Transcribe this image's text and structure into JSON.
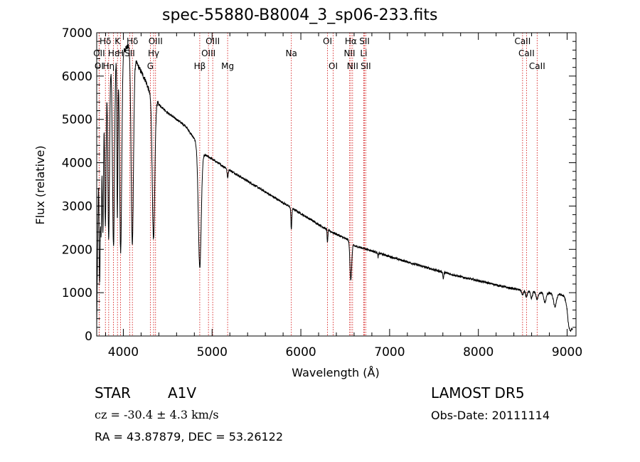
{
  "title": "spec-55880-B8004_3_sp06-233.fits",
  "info": {
    "class": "STAR",
    "subclass": "A1V",
    "survey": "LAMOST DR5",
    "cz": "cz = -30.4 ± 4.3 km/s",
    "obs_date": "Obs-Date: 20111114",
    "coords": "RA =  43.87879, DEC =  53.26122"
  },
  "colors": {
    "line": "#000000",
    "marker": "#d00000",
    "axis": "#000000"
  },
  "chart_data": {
    "type": "line",
    "xlabel": "Wavelength (Å)",
    "ylabel": "Flux (relative)",
    "xlim": [
      3700,
      9100
    ],
    "ylim": [
      0,
      7000
    ],
    "xticks": [
      4000,
      5000,
      6000,
      7000,
      8000,
      9000
    ],
    "yticks": [
      0,
      1000,
      2000,
      3000,
      4000,
      5000,
      6000,
      7000
    ],
    "continuum": [
      [
        3700,
        200
      ],
      [
        3720,
        3600
      ],
      [
        3750,
        5500
      ],
      [
        3800,
        6000
      ],
      [
        3900,
        6400
      ],
      [
        4000,
        6600
      ],
      [
        4060,
        6700
      ],
      [
        4150,
        6300
      ],
      [
        4250,
        5900
      ],
      [
        4300,
        5600
      ],
      [
        4400,
        5350
      ],
      [
        4500,
        5150
      ],
      [
        4600,
        5000
      ],
      [
        4700,
        4850
      ],
      [
        4800,
        4550
      ],
      [
        4880,
        4200
      ],
      [
        4950,
        4150
      ],
      [
        5100,
        3950
      ],
      [
        5300,
        3700
      ],
      [
        5500,
        3450
      ],
      [
        5700,
        3200
      ],
      [
        5900,
        2950
      ],
      [
        6100,
        2700
      ],
      [
        6300,
        2450
      ],
      [
        6500,
        2250
      ],
      [
        6560,
        2200
      ],
      [
        6600,
        2080
      ],
      [
        6700,
        2030
      ],
      [
        6900,
        1900
      ],
      [
        7100,
        1770
      ],
      [
        7300,
        1650
      ],
      [
        7500,
        1530
      ],
      [
        7700,
        1420
      ],
      [
        7900,
        1320
      ],
      [
        8100,
        1230
      ],
      [
        8300,
        1130
      ],
      [
        8500,
        1050
      ],
      [
        8700,
        1000
      ],
      [
        8900,
        970
      ],
      [
        9000,
        900
      ],
      [
        9040,
        300
      ],
      [
        9060,
        200
      ]
    ],
    "absorption_lines": [
      {
        "center": 3734,
        "depth": 3200,
        "width": 6
      },
      {
        "center": 3750,
        "depth": 3000,
        "width": 6
      },
      {
        "center": 3770,
        "depth": 3300,
        "width": 7
      },
      {
        "center": 3798,
        "depth": 3400,
        "width": 8
      },
      {
        "center": 3835,
        "depth": 3900,
        "width": 9
      },
      {
        "center": 3889,
        "depth": 4300,
        "width": 11
      },
      {
        "center": 3933,
        "depth": 3800,
        "width": 5
      },
      {
        "center": 3970,
        "depth": 4600,
        "width": 12
      },
      {
        "center": 4101,
        "depth": 4400,
        "width": 13
      },
      {
        "center": 4340,
        "depth": 3300,
        "width": 14
      },
      {
        "center": 4861,
        "depth": 2700,
        "width": 16
      },
      {
        "center": 5175,
        "depth": 200,
        "width": 6
      },
      {
        "center": 5893,
        "depth": 500,
        "width": 5
      },
      {
        "center": 6300,
        "depth": 300,
        "width": 4
      },
      {
        "center": 6563,
        "depth": 900,
        "width": 10
      },
      {
        "center": 6870,
        "depth": 100,
        "width": 4
      },
      {
        "center": 7605,
        "depth": 150,
        "width": 5
      },
      {
        "center": 8498,
        "depth": 100,
        "width": 9
      },
      {
        "center": 8542,
        "depth": 150,
        "width": 9
      },
      {
        "center": 8598,
        "depth": 160,
        "width": 10
      },
      {
        "center": 8662,
        "depth": 170,
        "width": 11
      },
      {
        "center": 8750,
        "depth": 220,
        "width": 13
      },
      {
        "center": 8863,
        "depth": 300,
        "width": 16
      },
      {
        "center": 9015,
        "depth": 400,
        "width": 20
      }
    ],
    "line_markers": [
      {
        "label": "Hδ",
        "wave": 3798,
        "row": 0
      },
      {
        "label": "K",
        "wave": 3934,
        "row": 0
      },
      {
        "label": "Hδ",
        "wave": 4102,
        "row": 0
      },
      {
        "label": "OIII",
        "wave": 4363,
        "row": 0
      },
      {
        "label": "OIII",
        "wave": 5007,
        "row": 0
      },
      {
        "label": "OI",
        "wave": 6300,
        "row": 0
      },
      {
        "label": "Hα",
        "wave": 6563,
        "row": 0
      },
      {
        "label": "SII",
        "wave": 6717,
        "row": 0
      },
      {
        "label": "CaII",
        "wave": 8498,
        "row": 0
      },
      {
        "label": "OII",
        "wave": 3727,
        "row": 1
      },
      {
        "label": "Hε",
        "wave": 3889,
        "row": 1
      },
      {
        "label": "H",
        "wave": 3969,
        "row": 1
      },
      {
        "label": "SII",
        "wave": 4072,
        "row": 1
      },
      {
        "label": "Hγ",
        "wave": 4341,
        "row": 1
      },
      {
        "label": "OIII",
        "wave": 4959,
        "row": 1
      },
      {
        "label": "Na",
        "wave": 5893,
        "row": 1
      },
      {
        "label": "NII",
        "wave": 6548,
        "row": 1
      },
      {
        "label": "Li",
        "wave": 6708,
        "row": 1
      },
      {
        "label": "CaII",
        "wave": 8542,
        "row": 1
      },
      {
        "label": "OI",
        "wave": 3727,
        "row": 2
      },
      {
        "label": "Hη",
        "wave": 3835,
        "row": 2
      },
      {
        "label": "G",
        "wave": 4304,
        "row": 2
      },
      {
        "label": "Hβ",
        "wave": 4861,
        "row": 2
      },
      {
        "label": "Mg",
        "wave": 5175,
        "row": 2
      },
      {
        "label": "OI",
        "wave": 6364,
        "row": 2
      },
      {
        "label": "NII",
        "wave": 6583,
        "row": 2
      },
      {
        "label": "SII",
        "wave": 6731,
        "row": 2
      },
      {
        "label": "CaII",
        "wave": 8662,
        "row": 2
      }
    ]
  }
}
